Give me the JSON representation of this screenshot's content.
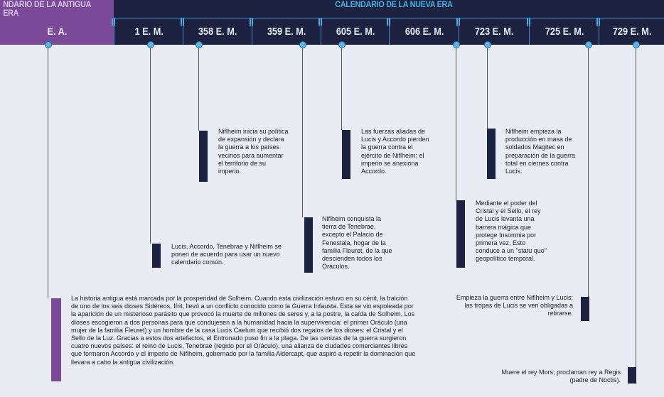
{
  "header": {
    "old_era": "NDARIO DE LA ANTIGUA ERA",
    "new_era": "CALENDARIO DE LA NUEVA ERA"
  },
  "columns": [
    "E. A.",
    "1 E. M.",
    "358 E. M.",
    "359 E. M.",
    "605 E. M.",
    "606 E. M.",
    "723 E. M.",
    "725 E. M.",
    "729 E. M."
  ],
  "colors": {
    "header": "#1c2240",
    "old_era": "#7a4a98",
    "accent": "#4aaee2"
  },
  "events": [
    {
      "year": "E. A.",
      "text": "La historia antigua está marcada por la prosperidad de Solheim. Cuando esta civilización estuvo en su cénit, la traición de uno de los seis dioses Sidéreos, Ifrit, llevó a un conflicto conocido como la Guerra Infausta. Esta se vio espoleada por la aparición de un misterioso parásito que provocó la muerte de millones de seres y, a la postre, la caída de Solheim. Los dioses escogieron a dos personas para que condujesen a la humanidad hacia la supervivencia: el primer Oráculo (una mujer de la familia Fleuret) y un hombre de la casa Lucis Caelum que recibió dos regalos de los dioses: el Cristal y el Sello de la Luz. Gracias a estos dos artefactos, el Entronado puso fin a la plaga. De las cenizas de la guerra surgieron cuatro nuevos países: el reino de Lucis, Tenebrae (regido por el Oráculo), una alianza de ciudades comerciantes libres que formaron Accordo y el imperio de Niflheim, gobernado por la familia Aldercapt, que aspiró a repetir la dominación que llevara a cabo la antigua civilización."
    },
    {
      "year": "1 E. M.",
      "text": "Lucis, Accordo, Tenebrae y Niflheim se ponen de acuerdo para usar un nuevo calendario común."
    },
    {
      "year": "358 E. M.",
      "text": "Niflheim inicia su política de expansión y declara la guerra a los países vecinos para aumentar el territorio de su imperio."
    },
    {
      "year": "359 E. M.",
      "text": "Niflheim conquista la tierra de Tenebrae, excepto el Palacio de Fenestala, hogar de la familia Fleuret, de la que descienden todos los Oráculos."
    },
    {
      "year": "605 E. M.",
      "text": "Las fuerzas aliadas de Lucis y Accordo pierden la guerra contra el ejército de Niflheim; el imperio se anexiona Accordo."
    },
    {
      "year": "606 E. M.",
      "text": "Mediante el poder del Cristal y el Sello, el rey de Lucis levanta una barrera mágica que protege Insomnia por primera vez. Esto conduce a un \"statu quo\" geopolítico temporal."
    },
    {
      "year": "723 E. M.",
      "text": "Niflheim empieza la producción en masa de soldados Magitec en preparación de la guerra total en ciernes contra Lucis."
    },
    {
      "year": "725 E. M.",
      "text": "Empieza la guerra entre Niflheim y Lucis; las tropas de Lucis se ven obligadas a retirarse."
    },
    {
      "year": "729 E. M.",
      "text": "Muere el rey Mors; proclaman rey a Regis (padre de Noctis)."
    }
  ]
}
